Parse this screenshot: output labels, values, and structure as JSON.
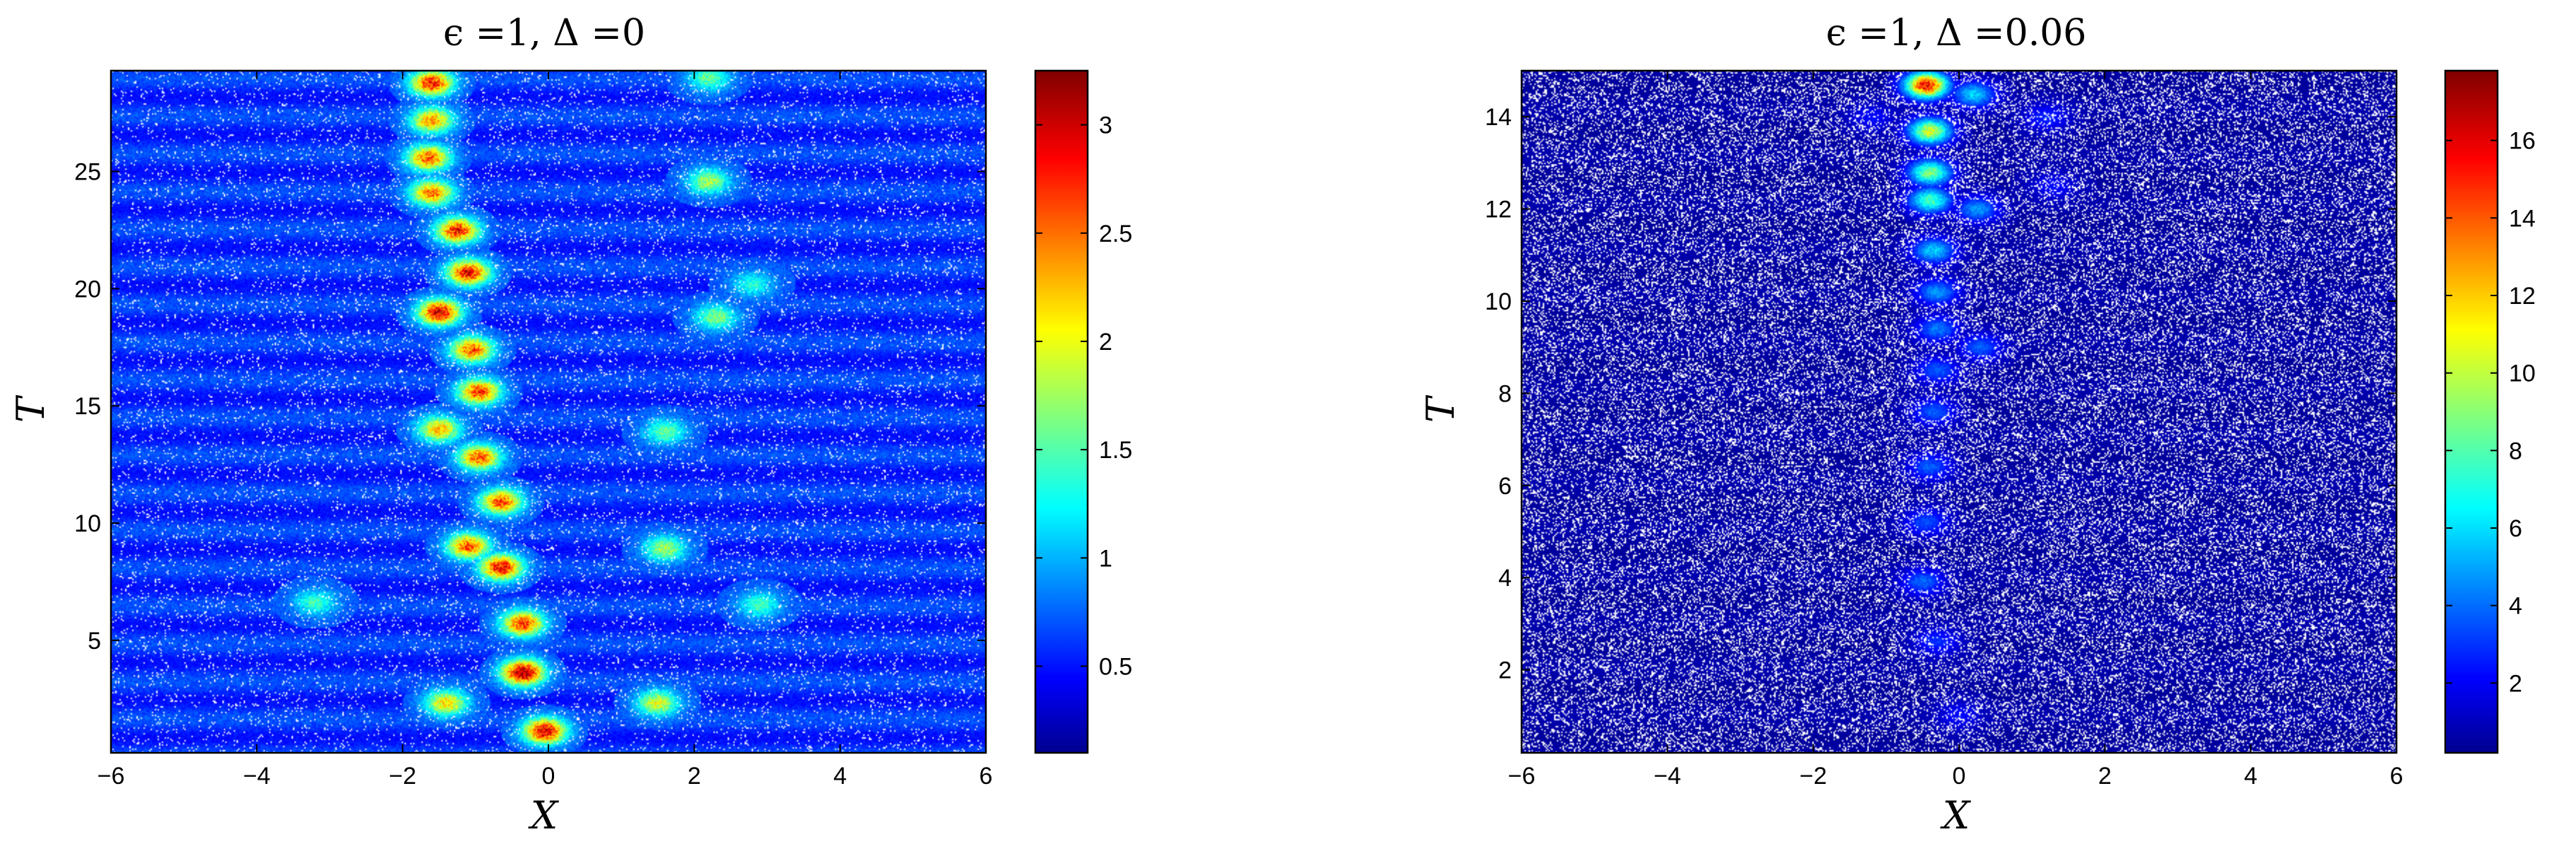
{
  "chart_data": [
    {
      "type": "heatmap",
      "title": "ϵ =1, Δ =0",
      "xlabel": "X",
      "ylabel": "T",
      "xlim": [
        -6,
        6
      ],
      "ylim": [
        0.2,
        29.3
      ],
      "xticks": [
        -6,
        -4,
        -2,
        0,
        2,
        4,
        6
      ],
      "yticks": [
        5,
        10,
        15,
        20,
        25
      ],
      "colorbar": {
        "colormap": "jet",
        "range": [
          0.1,
          3.25
        ],
        "ticks": [
          0.5,
          1,
          1.5,
          2,
          2.5,
          3
        ]
      },
      "background_level": 0.75,
      "features": [
        {
          "x": -1.6,
          "t": 28.8,
          "value": 2.8
        },
        {
          "x": -1.6,
          "t": 27.2,
          "value": 2.4
        },
        {
          "x": -1.65,
          "t": 25.6,
          "value": 2.6
        },
        {
          "x": -1.6,
          "t": 24.1,
          "value": 2.5
        },
        {
          "x": -1.25,
          "t": 22.5,
          "value": 2.8
        },
        {
          "x": -1.1,
          "t": 20.7,
          "value": 2.9
        },
        {
          "x": -1.5,
          "t": 19.0,
          "value": 3.0
        },
        {
          "x": -1.05,
          "t": 17.4,
          "value": 2.6
        },
        {
          "x": -0.95,
          "t": 15.6,
          "value": 2.7
        },
        {
          "x": -1.5,
          "t": 14.0,
          "value": 2.3
        },
        {
          "x": -0.95,
          "t": 12.8,
          "value": 2.6
        },
        {
          "x": -0.65,
          "t": 10.9,
          "value": 2.6
        },
        {
          "x": -1.1,
          "t": 9.0,
          "value": 2.6
        },
        {
          "x": -0.65,
          "t": 8.1,
          "value": 2.9
        },
        {
          "x": -0.35,
          "t": 5.7,
          "value": 2.7
        },
        {
          "x": -0.35,
          "t": 3.6,
          "value": 3.2
        },
        {
          "x": -1.4,
          "t": 2.3,
          "value": 2.2
        },
        {
          "x": 1.5,
          "t": 2.3,
          "value": 2.0
        },
        {
          "x": -0.05,
          "t": 1.1,
          "value": 3.0
        },
        {
          "x": 2.2,
          "t": 24.6,
          "value": 1.8
        },
        {
          "x": 2.3,
          "t": 18.8,
          "value": 1.7
        },
        {
          "x": 2.8,
          "t": 20.2,
          "value": 1.4
        },
        {
          "x": 1.6,
          "t": 13.9,
          "value": 1.6
        },
        {
          "x": 1.6,
          "t": 8.9,
          "value": 1.8
        },
        {
          "x": 2.9,
          "t": 6.5,
          "value": 1.5
        },
        {
          "x": -3.2,
          "t": 6.6,
          "value": 1.5
        },
        {
          "x": 2.2,
          "t": 29.0,
          "value": 1.6
        }
      ]
    },
    {
      "type": "heatmap",
      "title": "ϵ =1, Δ =0.06",
      "xlabel": "X",
      "ylabel": "T",
      "xlim": [
        -6,
        6
      ],
      "ylim": [
        0.2,
        15
      ],
      "xticks": [
        -6,
        -4,
        -2,
        0,
        2,
        4,
        6
      ],
      "yticks": [
        2,
        4,
        6,
        8,
        10,
        12,
        14
      ],
      "colorbar": {
        "colormap": "jet",
        "range": [
          0.2,
          17.8
        ],
        "ticks": [
          2,
          4,
          6,
          8,
          10,
          12,
          14,
          16
        ]
      },
      "background_level": 1.0,
      "features": [
        {
          "x": -0.45,
          "t": 14.7,
          "value": 15.5
        },
        {
          "x": -0.4,
          "t": 13.7,
          "value": 10.5
        },
        {
          "x": -0.4,
          "t": 12.8,
          "value": 9.0
        },
        {
          "x": -0.4,
          "t": 12.2,
          "value": 8.0
        },
        {
          "x": -0.35,
          "t": 11.1,
          "value": 6.0
        },
        {
          "x": -0.3,
          "t": 10.2,
          "value": 5.0
        },
        {
          "x": -0.3,
          "t": 9.4,
          "value": 4.5
        },
        {
          "x": -0.3,
          "t": 8.5,
          "value": 4.0
        },
        {
          "x": -0.35,
          "t": 7.6,
          "value": 4.0
        },
        {
          "x": -0.4,
          "t": 6.4,
          "value": 4.0
        },
        {
          "x": -0.45,
          "t": 5.2,
          "value": 3.8
        },
        {
          "x": -0.5,
          "t": 3.9,
          "value": 4.2
        },
        {
          "x": -0.3,
          "t": 2.6,
          "value": 3.2
        },
        {
          "x": 0.2,
          "t": 14.5,
          "value": 6.0
        },
        {
          "x": 0.25,
          "t": 12.0,
          "value": 5.0
        },
        {
          "x": 0.3,
          "t": 9.0,
          "value": 4.0
        },
        {
          "x": 1.2,
          "t": 14.0,
          "value": 3.0
        },
        {
          "x": 1.3,
          "t": 12.5,
          "value": 2.5
        },
        {
          "x": -1.2,
          "t": 14.0,
          "value": 2.5
        },
        {
          "x": 0.0,
          "t": 1.0,
          "value": 2.5
        }
      ]
    }
  ]
}
